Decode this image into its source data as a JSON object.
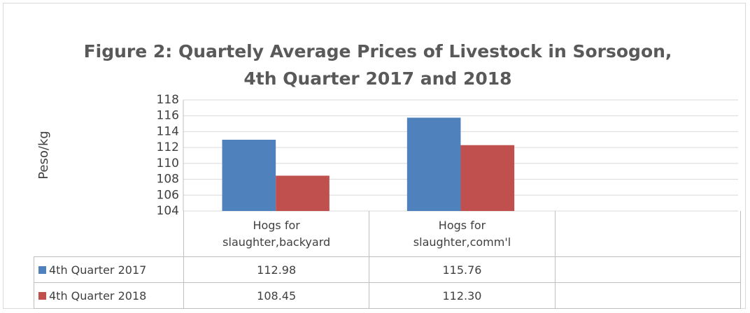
{
  "chart_data": {
    "type": "bar",
    "title": "Figure 2: Quartely Average Prices of Livestock  in Sorsogon,",
    "subtitle": "4th Quarter 2017 and 2018",
    "y_label": "Peso/kg",
    "categories": [
      "Hogs for slaughter,backyard",
      "Hogs for slaughter,comm'l",
      null
    ],
    "series": [
      {
        "name": "4th Quarter 2017",
        "color": "#4f81bd",
        "values": [
          112.98,
          115.76,
          null
        ]
      },
      {
        "name": "4th Quarter 2018",
        "color": "#c0504d",
        "values": [
          108.45,
          112.3,
          null
        ],
        "value_labels": [
          "108.45",
          "112.30",
          null
        ]
      }
    ],
    "ylim": [
      104,
      118
    ],
    "yticks": [
      104,
      106,
      108,
      110,
      112,
      114,
      116,
      118
    ],
    "grid": true
  }
}
